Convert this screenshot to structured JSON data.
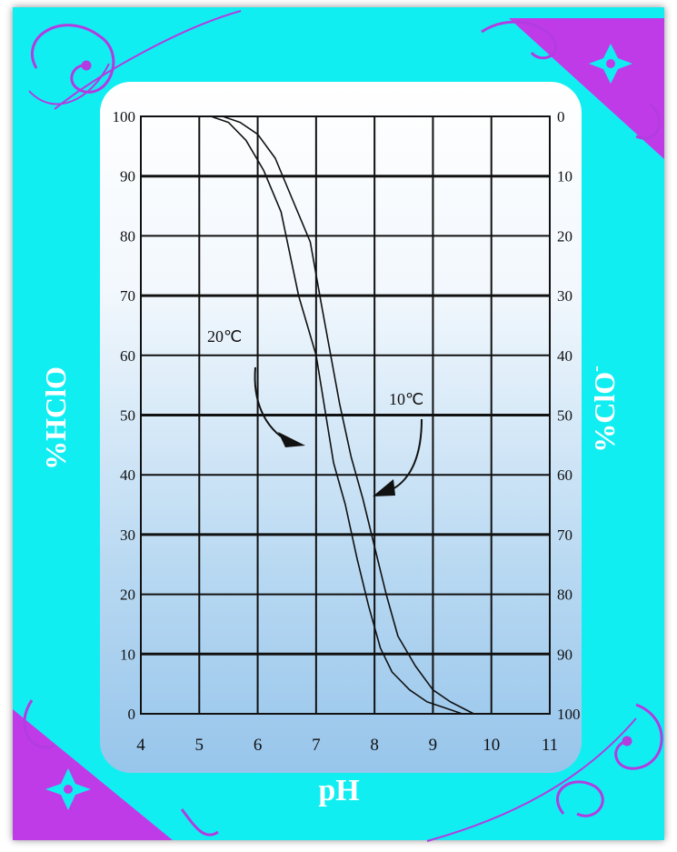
{
  "chart_data": {
    "type": "line",
    "title": "",
    "xlabel": "pH",
    "ylabel_left": "%HClO",
    "ylabel_right": "%ClO",
    "ylabel_right_sup": "-",
    "x_range": [
      4,
      11
    ],
    "x_ticks": [
      "4",
      "5",
      "6",
      "7",
      "8",
      "9",
      "10",
      "11"
    ],
    "y_range": [
      0,
      100
    ],
    "y_ticks_left": [
      "100",
      "90",
      "80",
      "70",
      "60",
      "50",
      "40",
      "30",
      "20",
      "10",
      "0"
    ],
    "y_ticks_right": [
      "0",
      "10",
      "20",
      "30",
      "40",
      "50",
      "60",
      "70",
      "80",
      "90",
      "100"
    ],
    "grid": true,
    "series": [
      {
        "name": "20℃",
        "x": [
          5.2,
          5.5,
          5.8,
          6.1,
          6.4,
          6.7,
          7.0,
          7.3,
          7.5,
          7.7,
          7.9,
          8.1,
          8.3,
          8.6,
          8.9,
          9.2,
          9.5
        ],
        "y": [
          100,
          99,
          96,
          91,
          84,
          70,
          60,
          42,
          35,
          26,
          18,
          11,
          7,
          4,
          2,
          1,
          0
        ]
      },
      {
        "name": "10℃",
        "x": [
          5.4,
          5.7,
          6.0,
          6.3,
          6.6,
          6.9,
          7.1,
          7.4,
          7.6,
          7.8,
          8.0,
          8.2,
          8.4,
          8.7,
          9.0,
          9.3,
          9.7
        ],
        "y": [
          100,
          99,
          97,
          93,
          86,
          79,
          68,
          52,
          43,
          36,
          28,
          20,
          13,
          8,
          4,
          2,
          0
        ]
      }
    ],
    "annotations": [
      {
        "text": "20℃"
      },
      {
        "text": "10℃"
      }
    ]
  },
  "colors": {
    "frame": "#11eef2",
    "ornament": "#b23ce0",
    "corner": "#c03be8",
    "axis_label": "#ffffff",
    "line": "#111111"
  },
  "icons": [
    "ornament-flourish-icon"
  ]
}
